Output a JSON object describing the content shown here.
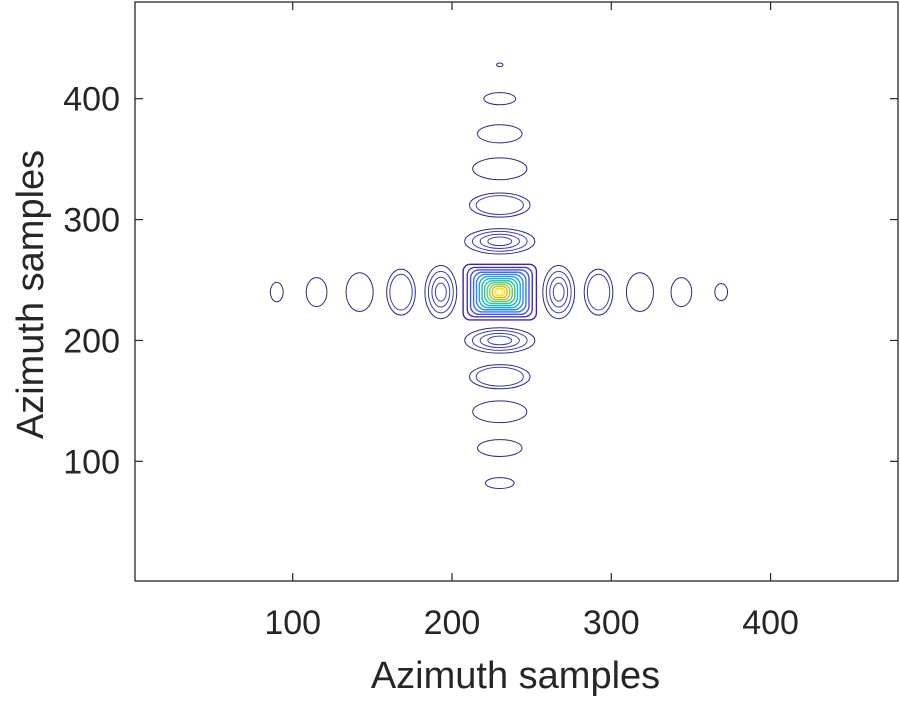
{
  "chart_data": {
    "type": "contour",
    "xlabel": "Azimuth samples",
    "ylabel": "Azimuth samples",
    "xlim": [
      1,
      480
    ],
    "ylim": [
      1,
      480
    ],
    "xticks": [
      100,
      200,
      300,
      400
    ],
    "yticks": [
      100,
      200,
      300,
      400
    ],
    "xtick_labels": [
      "100",
      "200",
      "300",
      "400"
    ],
    "ytick_labels": [
      "100",
      "200",
      "300",
      "400"
    ],
    "grid": false,
    "colormap": "parula",
    "peak": {
      "x": 230,
      "y": 240
    },
    "horizontal_sidelobes": [
      {
        "x": 90,
        "y": 240,
        "rx": 4,
        "ry": 8,
        "levels": 1
      },
      {
        "x": 115,
        "y": 240,
        "rx": 6.5,
        "ry": 12,
        "levels": 1
      },
      {
        "x": 142,
        "y": 240,
        "rx": 8.5,
        "ry": 16,
        "levels": 1
      },
      {
        "x": 168,
        "y": 240,
        "rx": 9,
        "ry": 19,
        "levels": 2
      },
      {
        "x": 193,
        "y": 240,
        "rx": 10,
        "ry": 22,
        "levels": 4
      },
      {
        "x": 267,
        "y": 240,
        "rx": 10,
        "ry": 22,
        "levels": 4
      },
      {
        "x": 292,
        "y": 240,
        "rx": 9,
        "ry": 19,
        "levels": 2
      },
      {
        "x": 318,
        "y": 240,
        "rx": 8.5,
        "ry": 16,
        "levels": 1
      },
      {
        "x": 344,
        "y": 240,
        "rx": 6.5,
        "ry": 12,
        "levels": 1
      },
      {
        "x": 369,
        "y": 240,
        "rx": 4,
        "ry": 7,
        "levels": 1
      }
    ],
    "vertical_sidelobes": [
      {
        "x": 230,
        "y": 428,
        "rx": 2,
        "ry": 1.5,
        "levels": 1
      },
      {
        "x": 230,
        "y": 400,
        "rx": 10,
        "ry": 5,
        "levels": 1
      },
      {
        "x": 230,
        "y": 371,
        "rx": 14,
        "ry": 7.5,
        "levels": 1
      },
      {
        "x": 230,
        "y": 342,
        "rx": 17,
        "ry": 9,
        "levels": 1
      },
      {
        "x": 230,
        "y": 312,
        "rx": 19,
        "ry": 10,
        "levels": 2
      },
      {
        "x": 230,
        "y": 282,
        "rx": 22,
        "ry": 10.5,
        "levels": 4
      },
      {
        "x": 230,
        "y": 200,
        "rx": 22,
        "ry": 10.5,
        "levels": 4
      },
      {
        "x": 230,
        "y": 170,
        "rx": 19,
        "ry": 10,
        "levels": 2
      },
      {
        "x": 230,
        "y": 141,
        "rx": 17,
        "ry": 9,
        "levels": 1
      },
      {
        "x": 230,
        "y": 111,
        "rx": 14,
        "ry": 7,
        "levels": 1
      },
      {
        "x": 230,
        "y": 82,
        "rx": 9,
        "ry": 4.5,
        "levels": 1
      }
    ],
    "main_lobe": {
      "x": 230,
      "y": 240,
      "half_width_x": 23,
      "half_width_y": 23,
      "levels": 12,
      "colors": [
        "#3e26a8",
        "#4435c8",
        "#4752e0",
        "#3b6ff5",
        "#2a8cf0",
        "#1fa6db",
        "#18b9c1",
        "#2cc59f",
        "#5ecb73",
        "#9bc948",
        "#d5bb30",
        "#fadd2c",
        "#f9fb0e"
      ]
    }
  }
}
